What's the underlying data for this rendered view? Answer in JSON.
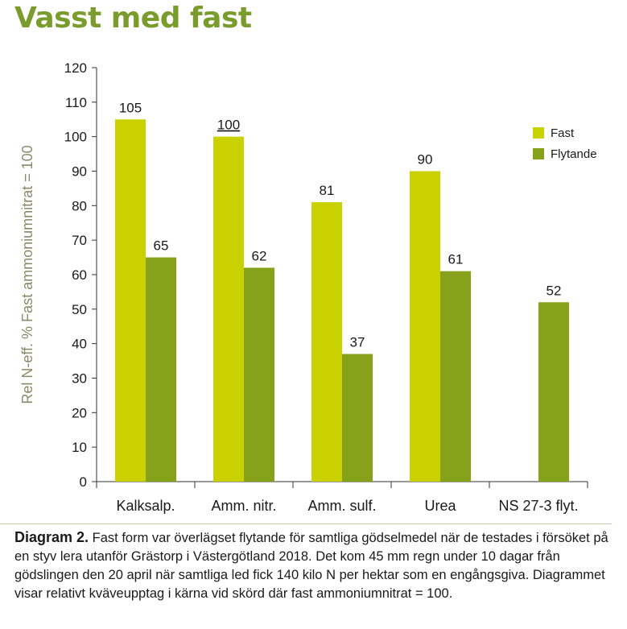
{
  "page_title": "Vasst med fast",
  "chart_data": {
    "type": "bar",
    "categories": [
      "Kalksalp.",
      "Amm. nitr.",
      "Amm. sulf.",
      "Urea",
      "NS 27-3 flyt."
    ],
    "series": [
      {
        "name": "Fast",
        "color": "#c9d200",
        "values": [
          105,
          100,
          81,
          90,
          null
        ]
      },
      {
        "name": "Flytande",
        "color": "#86a21b",
        "values": [
          65,
          62,
          37,
          61,
          52
        ]
      }
    ],
    "ylabel": "Rel N-eff. % Fast ammoniumnitrat = 100",
    "xlabel": "",
    "ylim": [
      0,
      120
    ],
    "yticks": [
      0,
      10,
      20,
      30,
      40,
      50,
      60,
      70,
      80,
      90,
      100,
      110,
      120
    ],
    "grid": false,
    "legend": "top-right",
    "reference_label_underlined": "100"
  },
  "caption": {
    "label": "Diagram 2.",
    "text": "Fast form var överlägset flytande för samtliga gödselmedel när de testades i försöket på en styv lera utanför Grästorp i Västergötland 2018. Det kom 45 mm regn under 10 dagar från gödslingen den 20 april när samtliga led fick 140 kilo N per hektar som en engångsgiva. Diagrammet visar relativt kväveupptag i kärna vid skörd där fast ammoniumnitrat = 100."
  }
}
